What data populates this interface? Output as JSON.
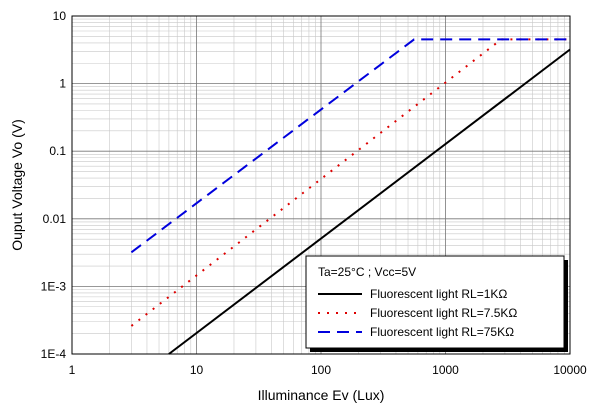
{
  "chart_data": {
    "type": "line",
    "xscale": "log",
    "yscale": "log",
    "xlabel": "Illuminance Ev (Lux)",
    "ylabel": "Ouput Voltage Vo (V)",
    "xlim": [
      1,
      10000
    ],
    "ylim": [
      0.0001,
      10
    ],
    "x_ticks": [
      {
        "value": 1,
        "label": "1"
      },
      {
        "value": 10,
        "label": "10"
      },
      {
        "value": 100,
        "label": "100"
      },
      {
        "value": 1000,
        "label": "1000"
      },
      {
        "value": 10000,
        "label": "10000"
      }
    ],
    "y_ticks": [
      {
        "value": 0.0001,
        "label": "1E-4"
      },
      {
        "value": 0.001,
        "label": "1E-3"
      },
      {
        "value": 0.01,
        "label": "0.01"
      },
      {
        "value": 0.1,
        "label": "0.1"
      },
      {
        "value": 1,
        "label": "1"
      },
      {
        "value": 10,
        "label": "10"
      }
    ],
    "grid": true,
    "legend": {
      "position": "bottom-right",
      "title": "Ta=25°C ; Vcc=5V",
      "entries": [
        {
          "label": "Fluorescent light  RL=1KΩ",
          "style": "solid",
          "color": "#000000"
        },
        {
          "label": "Fluorescent light  RL=7.5KΩ",
          "style": "dotted",
          "color": "#dd0000"
        },
        {
          "label": "Fluorescent light  RL=75KΩ",
          "style": "dashed",
          "color": "#0000dd"
        }
      ]
    },
    "series": [
      {
        "style": "solid",
        "color": "#000000",
        "x": [
          6,
          10000
        ],
        "y": [
          0.0001,
          3.2
        ]
      },
      {
        "style": "dotted",
        "color": "#dd0000",
        "x": [
          3,
          2800,
          10000
        ],
        "y": [
          0.00026,
          4.5,
          4.5
        ]
      },
      {
        "style": "dashed",
        "color": "#0000dd",
        "x": [
          3,
          560,
          10000
        ],
        "y": [
          0.0032,
          4.5,
          4.5
        ]
      }
    ]
  }
}
